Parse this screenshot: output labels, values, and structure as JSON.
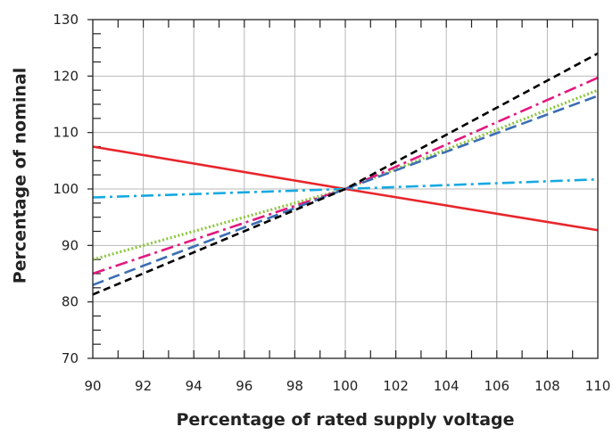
{
  "chart_data": {
    "type": "line",
    "title": "",
    "xlabel": "Percentage of rated supply voltage",
    "ylabel": "Percentage of nominal",
    "xlim": [
      90,
      110
    ],
    "ylim": [
      70,
      130
    ],
    "x_ticks": [
      "90",
      "92",
      "94",
      "96",
      "98",
      "100",
      "102",
      "104",
      "106",
      "108",
      "110"
    ],
    "y_ticks": [
      "70",
      "80",
      "90",
      "100",
      "110",
      "120",
      "130"
    ],
    "grid": true,
    "legend": "none",
    "series": [
      {
        "color": "#e8262b",
        "style": "solid",
        "points": [
          [
            90,
            107.5
          ],
          [
            100,
            100
          ],
          [
            110,
            92.7
          ]
        ]
      },
      {
        "color": "#16a9e1",
        "style": "dash-dot",
        "points": [
          [
            90,
            98.5
          ],
          [
            100,
            100
          ],
          [
            110,
            101.7
          ]
        ]
      },
      {
        "color": "#8dc63f",
        "style": "dotted",
        "points": [
          [
            90,
            87.5
          ],
          [
            100,
            100
          ],
          [
            110,
            117.5
          ]
        ]
      },
      {
        "color": "#e2187f",
        "style": "dash-dot",
        "points": [
          [
            90,
            85
          ],
          [
            100,
            100
          ],
          [
            110,
            119.7
          ]
        ]
      },
      {
        "color": "#3c6eb4",
        "style": "long-dash",
        "points": [
          [
            90,
            83
          ],
          [
            100,
            100
          ],
          [
            110,
            116.5
          ]
        ]
      },
      {
        "color": "#000000",
        "style": "dashed",
        "points": [
          [
            90,
            81.3
          ],
          [
            100,
            100
          ],
          [
            110,
            124
          ]
        ]
      }
    ]
  }
}
